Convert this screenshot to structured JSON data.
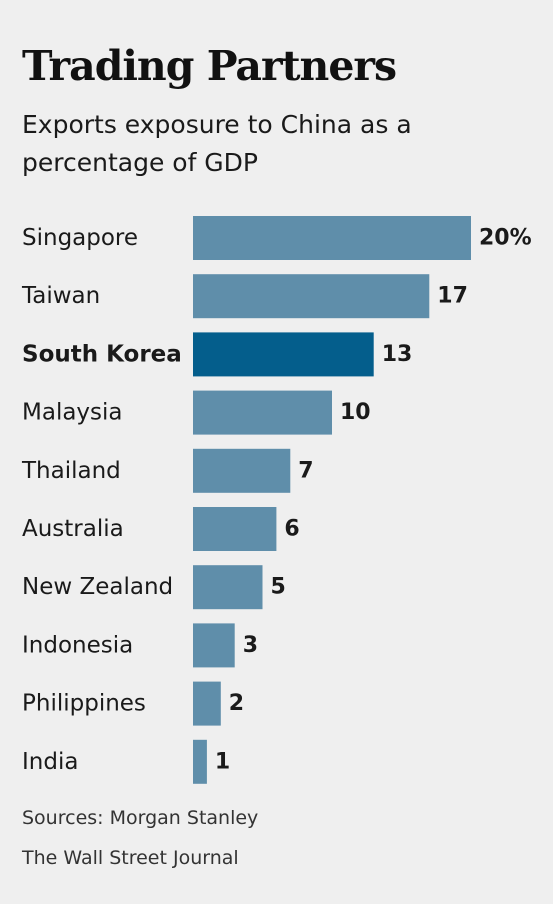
{
  "header": {
    "title": "Trading Partners",
    "subtitle": "Exports exposure to China as a percentage of GDP"
  },
  "chart_data": {
    "type": "bar",
    "orientation": "horizontal",
    "title": "Trading Partners",
    "subtitle": "Exports exposure to China as a percentage of GDP",
    "xlabel": "",
    "ylabel": "",
    "xlim": [
      0,
      20
    ],
    "unit_suffix_first_label": "%",
    "grid": false,
    "legend": "none",
    "categories": [
      "Singapore",
      "Taiwan",
      "South Korea",
      "Malaysia",
      "Thailand",
      "Australia",
      "New Zealand",
      "Indonesia",
      "Philippines",
      "India"
    ],
    "values": [
      20,
      17,
      13,
      10,
      7,
      6,
      5,
      3,
      2,
      1
    ],
    "value_labels": [
      "20%",
      "17",
      "13",
      "10",
      "7",
      "6",
      "5",
      "3",
      "2",
      "1"
    ],
    "highlighted": "South Korea",
    "colors": {
      "bar": "#5f8eaa",
      "highlight": "#045e8c"
    }
  },
  "footer": {
    "source_line1": "Sources: Morgan Stanley",
    "source_line2": "The Wall Street Journal"
  }
}
